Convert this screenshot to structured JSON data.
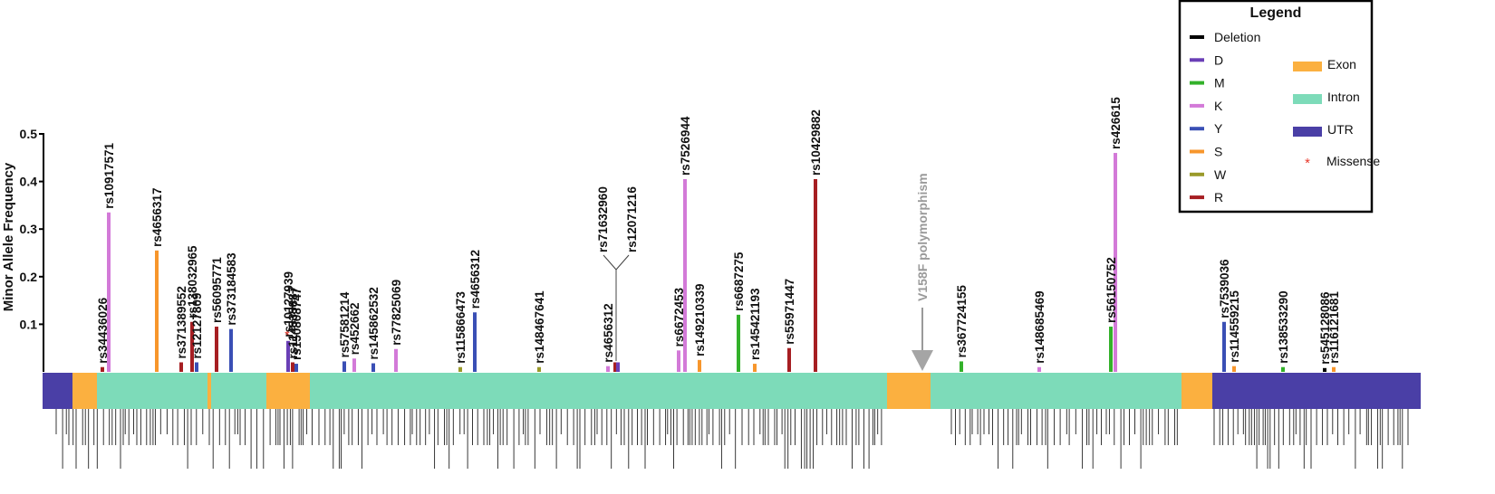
{
  "chart_data": {
    "type": "bar",
    "ylabel": "Minor Allele Frequency",
    "ylim": [
      0,
      0.5
    ],
    "yticks": [
      "0.1",
      "0.2",
      "0.3",
      "0.4",
      "0.5"
    ],
    "colors": {
      "Deletion": "#000000",
      "D": "#6a3fb6",
      "M": "#33b12a",
      "K": "#d37ad8",
      "Y": "#3a4fb5",
      "S": "#f7962c",
      "W": "#9a9a2a",
      "R": "#a61e22",
      "Exon": "#fbb040",
      "Intron": "#7ddbb9",
      "UTR": "#4a3fa6"
    },
    "snps": [
      {
        "id": "rs34436026",
        "code": "R",
        "maf": 0.01,
        "pos": 113
      },
      {
        "id": "rs10917571",
        "code": "K",
        "maf": 0.335,
        "pos": 120
      },
      {
        "id": "rs4656317",
        "code": "S",
        "maf": 0.255,
        "pos": 173
      },
      {
        "id": "rs371389552",
        "code": "R",
        "maf": 0.02,
        "pos": 200
      },
      {
        "id": "rs138032965",
        "code": "R",
        "maf": 0.105,
        "pos": 212
      },
      {
        "id": "rs12127809",
        "code": "Y",
        "maf": 0.02,
        "pos": 217
      },
      {
        "id": "rs56095771",
        "code": "R",
        "maf": 0.095,
        "pos": 239
      },
      {
        "id": "rs373184583",
        "code": "Y",
        "maf": 0.09,
        "pos": 255
      },
      {
        "id": "rs10127939",
        "code": "D",
        "maf": 0.065,
        "pos": 318,
        "missense": true
      },
      {
        "id": "rs114535887",
        "code": "R",
        "maf": 0.02,
        "pos": 323
      },
      {
        "id": "rs150808747",
        "code": "Y",
        "maf": 0.017,
        "pos": 327
      },
      {
        "id": "rs57581214",
        "code": "Y",
        "maf": 0.022,
        "pos": 380
      },
      {
        "id": "rs452662",
        "code": "K",
        "maf": 0.028,
        "pos": 391
      },
      {
        "id": "rs145862532",
        "code": "Y",
        "maf": 0.018,
        "pos": 412
      },
      {
        "id": "rs77825069",
        "code": "K",
        "maf": 0.048,
        "pos": 437
      },
      {
        "id": "rs115866473",
        "code": "W",
        "maf": 0.01,
        "pos": 508
      },
      {
        "id": "rs4656312",
        "code": "Y",
        "maf": 0.125,
        "pos": 524
      },
      {
        "id": "rs148467641",
        "code": "W",
        "maf": 0.01,
        "pos": 595
      },
      {
        "id": "rs4656312",
        "code": "K",
        "maf": 0.012,
        "pos": 671
      },
      {
        "id": "rs71632960",
        "code": "R",
        "maf": 0.02,
        "pos": 679
      },
      {
        "id": "rs12071216",
        "code": "D",
        "maf": 0.02,
        "pos": 682
      },
      {
        "id": "rs6672453",
        "code": "K",
        "maf": 0.045,
        "pos": 749
      },
      {
        "id": "rs7526944",
        "code": "K",
        "maf": 0.405,
        "pos": 756
      },
      {
        "id": "rs149210339",
        "code": "S",
        "maf": 0.025,
        "pos": 772
      },
      {
        "id": "rs6687275",
        "code": "M",
        "maf": 0.12,
        "pos": 815
      },
      {
        "id": "rs145421193",
        "code": "S",
        "maf": 0.017,
        "pos": 833
      },
      {
        "id": "rs55971447",
        "code": "R",
        "maf": 0.05,
        "pos": 871
      },
      {
        "id": "rs10429882",
        "code": "R",
        "maf": 0.405,
        "pos": 900
      },
      {
        "id": "rs367724155",
        "code": "M",
        "maf": 0.022,
        "pos": 1061
      },
      {
        "id": "rs148685469",
        "code": "K",
        "maf": 0.01,
        "pos": 1147
      },
      {
        "id": "rs56150752",
        "code": "M",
        "maf": 0.095,
        "pos": 1226
      },
      {
        "id": "rs426615",
        "code": "K",
        "maf": 0.46,
        "pos": 1231
      },
      {
        "id": "rs7539036",
        "code": "Y",
        "maf": 0.105,
        "pos": 1351
      },
      {
        "id": "rs114559215",
        "code": "S",
        "maf": 0.012,
        "pos": 1362
      },
      {
        "id": "rs138533290",
        "code": "M",
        "maf": 0.01,
        "pos": 1416
      },
      {
        "id": "rs545128086",
        "code": "Deletion",
        "maf": 0.008,
        "pos": 1462
      },
      {
        "id": "rs116121681",
        "code": "S",
        "maf": 0.01,
        "pos": 1472
      }
    ],
    "gene_segments": [
      {
        "type": "UTR",
        "start": 47,
        "end": 80
      },
      {
        "type": "Exon",
        "start": 80,
        "end": 107
      },
      {
        "type": "Intron",
        "start": 107,
        "end": 229
      },
      {
        "type": "Exon",
        "start": 229,
        "end": 233
      },
      {
        "type": "Intron",
        "start": 233,
        "end": 294
      },
      {
        "type": "Exon",
        "start": 294,
        "end": 342
      },
      {
        "type": "Intron",
        "start": 342,
        "end": 979
      },
      {
        "type": "Exon",
        "start": 979,
        "end": 1027
      },
      {
        "type": "Intron",
        "start": 1027,
        "end": 1304
      },
      {
        "type": "Exon",
        "start": 1304,
        "end": 1338
      },
      {
        "type": "UTR",
        "start": 1338,
        "end": 1568
      }
    ],
    "annotation": {
      "text": "V158F polymorphism",
      "pos": 1018
    }
  },
  "legend": {
    "title": "Legend",
    "variant_items": [
      "Deletion",
      "D",
      "M",
      "K",
      "Y",
      "S",
      "W",
      "R"
    ],
    "region_items": [
      "Exon",
      "Intron",
      "UTR"
    ],
    "missense_symbol": "*",
    "missense_label": "Missense"
  }
}
